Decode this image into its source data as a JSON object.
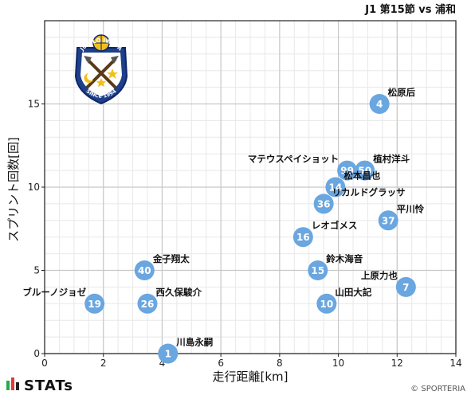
{
  "header": {
    "match_title": "J1 第15節 vs 浦和"
  },
  "footer": {
    "brand": "STATs",
    "copyright": "© SPORTERIA"
  },
  "logo": {
    "club_name": "JUBILO IWATA",
    "since": "SINCE 1994"
  },
  "colors": {
    "point": "#6aa6e0",
    "grid_major": "#c8c8c8",
    "grid_minor": "#e8e8e8"
  },
  "chart_data": {
    "type": "scatter",
    "title": "J1 第15節 vs 浦和",
    "xlabel": "走行距離[km]",
    "ylabel": "スプリント回数[回]",
    "xlim": [
      0,
      14
    ],
    "ylim": [
      0,
      20
    ],
    "xticks": [
      0,
      2,
      4,
      6,
      8,
      10,
      12,
      14
    ],
    "yticks": [
      0,
      5,
      10,
      15
    ],
    "grid": true,
    "points": [
      {
        "number": "4",
        "name": "松原后",
        "x": 11.4,
        "y": 15,
        "label_side": "right"
      },
      {
        "number": "99",
        "name": "マテウスペイショット",
        "x": 10.3,
        "y": 11,
        "label_side": "left"
      },
      {
        "number": "50",
        "name": "植村洋斗",
        "x": 10.9,
        "y": 11,
        "label_side": "right"
      },
      {
        "number": "14",
        "name": "松本昌也",
        "x": 9.9,
        "y": 10,
        "label_side": "right"
      },
      {
        "number": "36",
        "name": "リカルドグラッサ",
        "x": 9.5,
        "y": 9,
        "label_side": "right"
      },
      {
        "number": "37",
        "name": "平川怜",
        "x": 11.7,
        "y": 8,
        "label_side": "right"
      },
      {
        "number": "16",
        "name": "レオゴメス",
        "x": 8.8,
        "y": 7,
        "label_side": "right"
      },
      {
        "number": "40",
        "name": "金子翔太",
        "x": 3.4,
        "y": 5,
        "label_side": "right"
      },
      {
        "number": "15",
        "name": "鈴木海音",
        "x": 9.3,
        "y": 5,
        "label_side": "right"
      },
      {
        "number": "7",
        "name": "上原力也",
        "x": 12.3,
        "y": 4,
        "label_side": "left"
      },
      {
        "number": "19",
        "name": "ブルーノジョゼ",
        "x": 1.7,
        "y": 3,
        "label_side": "left"
      },
      {
        "number": "26",
        "name": "西久保駿介",
        "x": 3.5,
        "y": 3,
        "label_side": "right"
      },
      {
        "number": "10",
        "name": "山田大記",
        "x": 9.6,
        "y": 3,
        "label_side": "right"
      },
      {
        "number": "1",
        "name": "川島永嗣",
        "x": 4.2,
        "y": 0,
        "label_side": "right"
      }
    ]
  }
}
